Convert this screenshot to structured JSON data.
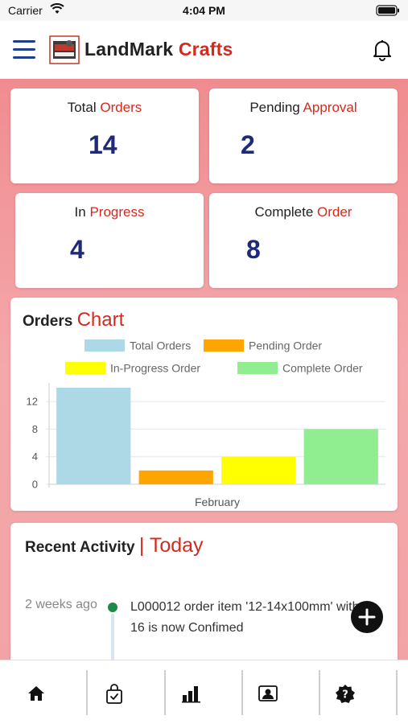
{
  "status_bar": {
    "carrier": "Carrier",
    "time": "4:04 PM"
  },
  "header": {
    "brand_part1": "LandMark",
    "brand_part2": "Crafts",
    "icons": [
      "menu-icon",
      "logo",
      "bell-icon"
    ]
  },
  "stats": [
    {
      "label_plain": "Total",
      "label_accent": "Orders",
      "value": "14"
    },
    {
      "label_plain": "Pending",
      "label_accent": "Approval",
      "value": "2"
    },
    {
      "label_plain": "In",
      "label_accent": "Progress",
      "value": "4"
    },
    {
      "label_plain": "Complete",
      "label_accent": "Order",
      "value": "8"
    }
  ],
  "chart_section": {
    "title_plain": "Orders",
    "title_accent": "Chart"
  },
  "chart_data": {
    "type": "bar",
    "categories": [
      "February"
    ],
    "series": [
      {
        "name": "Total Orders",
        "values": [
          14
        ],
        "color": "#add8e6"
      },
      {
        "name": "Pending Order",
        "values": [
          2
        ],
        "color": "#ffa500"
      },
      {
        "name": "In-Progress Order",
        "values": [
          4
        ],
        "color": "#ffff00"
      },
      {
        "name": "Complete Order",
        "values": [
          8
        ],
        "color": "#90ee90"
      }
    ],
    "yticks": [
      "0",
      "4",
      "8",
      "12"
    ],
    "ylim": [
      0,
      14
    ],
    "legend": "top",
    "grid": true
  },
  "activity": {
    "title_plain": "Recent Activity",
    "title_accent": "| Today",
    "items": [
      {
        "time": "2 weeks ago",
        "text": "L000012 order item '12-14x100mm' with 16 is now Confimed"
      }
    ]
  },
  "fab": {
    "icon": "plus-icon"
  },
  "bottom_nav": {
    "items": [
      {
        "icon": "home-icon"
      },
      {
        "icon": "shopping-bag-check-icon"
      },
      {
        "icon": "bar-chart-icon"
      },
      {
        "icon": "contact-card-icon"
      },
      {
        "icon": "help-badge-icon"
      }
    ]
  },
  "colors": {
    "accent": "#d42a1e",
    "stat_value": "#1e2a78",
    "menu": "#1e3f8a",
    "content_bg": "#f3a1a4"
  }
}
